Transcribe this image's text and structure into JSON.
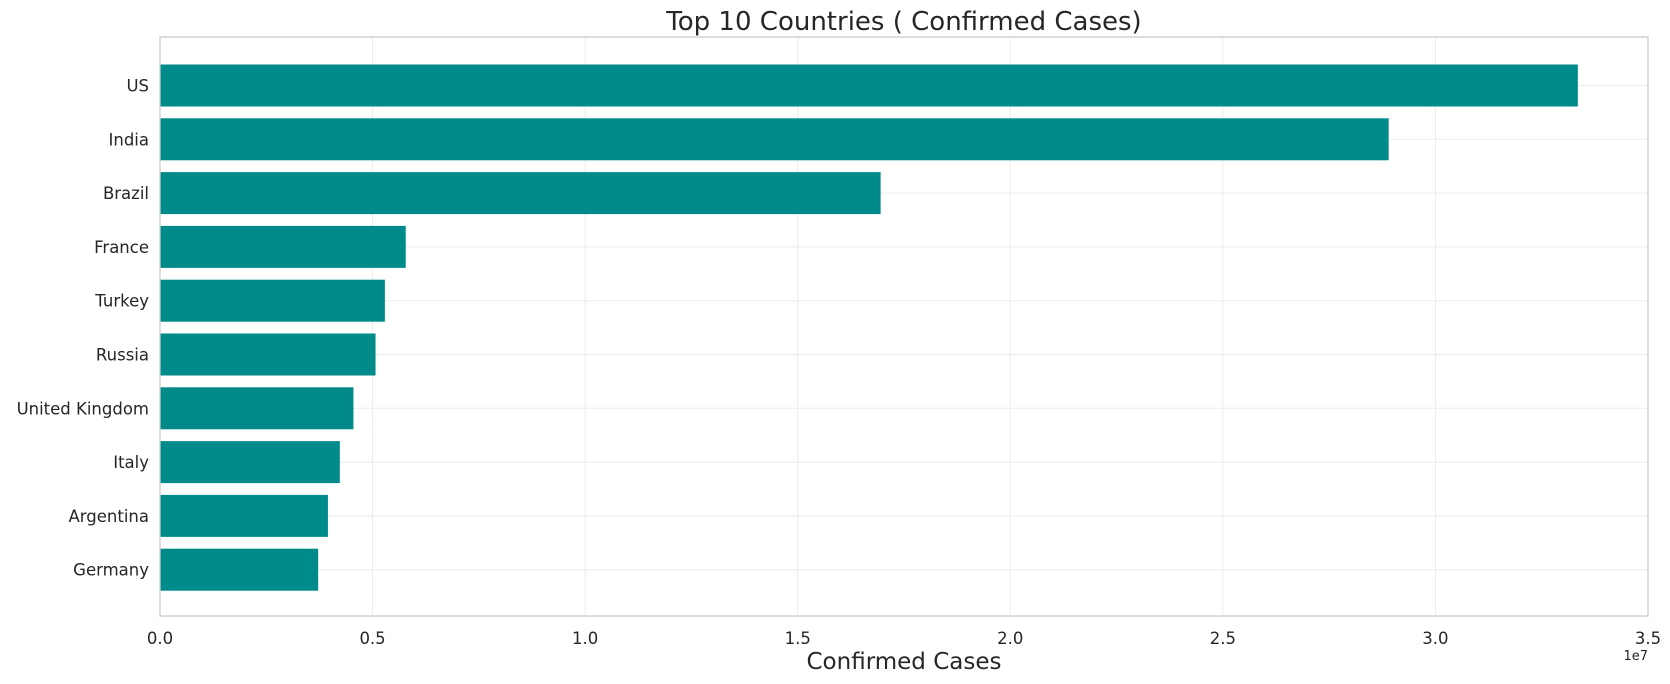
{
  "chart_data": {
    "type": "bar",
    "orientation": "horizontal",
    "title": "Top 10 Countries ( Confirmed Cases)",
    "xlabel": "Confirmed Cases",
    "ylabel": "",
    "x_offset_label": "1e7",
    "categories": [
      "US",
      "India",
      "Brazil",
      "France",
      "Turkey",
      "Russia",
      "United Kingdom",
      "Italy",
      "Argentina",
      "Germany"
    ],
    "values": [
      33350000,
      28900000,
      16950000,
      5780000,
      5290000,
      5070000,
      4550000,
      4230000,
      3950000,
      3720000
    ],
    "xlim": [
      0,
      35000000
    ],
    "xticks": [
      0,
      5000000,
      10000000,
      15000000,
      20000000,
      25000000,
      30000000,
      35000000
    ],
    "xtick_labels": [
      "0.0",
      "0.5",
      "1.0",
      "1.5",
      "2.0",
      "2.5",
      "3.0",
      "3.5"
    ],
    "bar_color": "#008b8a",
    "grid": true,
    "legend": "none"
  }
}
